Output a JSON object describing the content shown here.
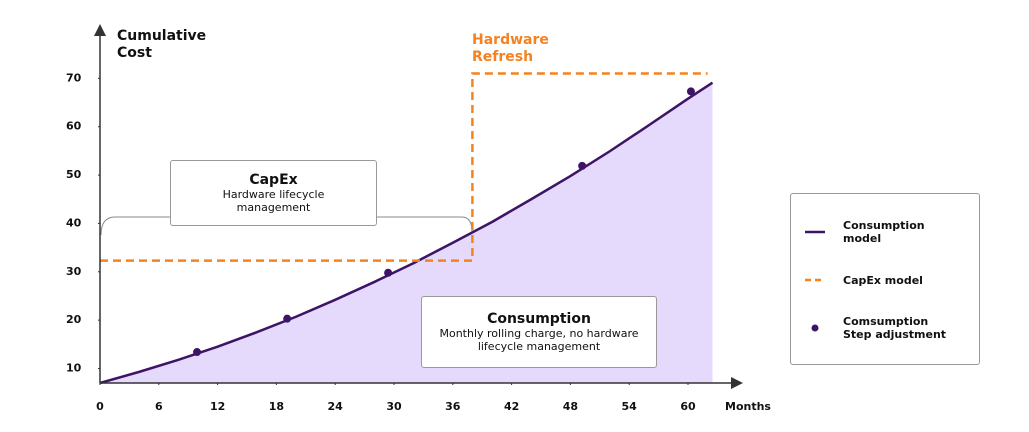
{
  "chart_data": {
    "type": "line",
    "axis_labels": {
      "y": "Cumulative Cost",
      "x": "Months"
    },
    "xlim": [
      0,
      65
    ],
    "ylim": [
      7,
      80
    ],
    "xticks": [
      0,
      6,
      12,
      18,
      24,
      30,
      36,
      42,
      48,
      54,
      60
    ],
    "yticks": [
      10,
      20,
      30,
      40,
      50,
      60,
      70
    ],
    "series": [
      {
        "name": "Consumption model",
        "color": "#3d1466",
        "style": "line",
        "fill": "#e5dafc",
        "x": [
          0,
          4,
          8,
          12,
          16,
          20,
          24,
          28,
          32,
          36,
          40,
          44,
          48,
          52,
          56,
          60,
          62.5
        ],
        "values": [
          7,
          9.3,
          11.8,
          14.5,
          17.5,
          20.7,
          24.2,
          27.9,
          31.8,
          36.0,
          40.3,
          45.0,
          49.8,
          54.9,
          60.3,
          65.8,
          69.1
        ]
      },
      {
        "name": "CapEx model",
        "color": "#f5821f",
        "style": "dashed",
        "x": [
          0,
          38,
          38,
          62
        ],
        "values": [
          32.3,
          32.3,
          71,
          71
        ]
      },
      {
        "name": "Comsumption Step adjustment",
        "color": "#3d1466",
        "style": "markers",
        "x": [
          9.9,
          19.1,
          29.4,
          49.2,
          60.3
        ],
        "values": [
          13.4,
          20.3,
          29.8,
          51.9,
          67.3
        ]
      }
    ],
    "annotations": [
      {
        "title": "CapEx",
        "text": "Hardware lifecycle management"
      },
      {
        "title": "Consumption",
        "text": "Monthly rolling charge, no hardware lifecycle management"
      },
      {
        "title": "Hardware Refresh"
      }
    ]
  }
}
